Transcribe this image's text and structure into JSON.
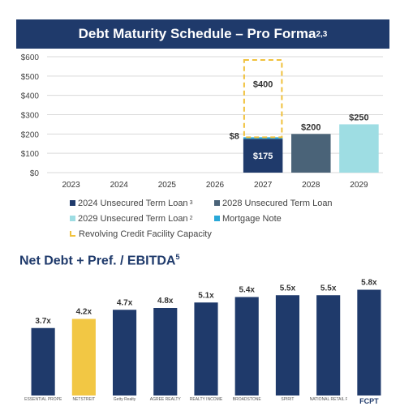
{
  "chart_data": [
    {
      "type": "bar",
      "stacked": true,
      "title": "Debt Maturity Schedule – Pro Forma",
      "title_superscript": "2,3",
      "categories": [
        "2023",
        "2024",
        "2025",
        "2026",
        "2027",
        "2028",
        "2029"
      ],
      "yticks": [
        "$0",
        "$100",
        "$200",
        "$300",
        "$400",
        "$500",
        "$600"
      ],
      "ylim": [
        0,
        600
      ],
      "grid": true,
      "series": [
        {
          "name": "2024 Unsecured Term Loan",
          "name_superscript": "3",
          "color": "#1f3a6b",
          "values": [
            0,
            0,
            0,
            0,
            175,
            0,
            0
          ]
        },
        {
          "name": "2028 Unsecured Term Loan",
          "name_superscript": "",
          "color": "#4a6378",
          "values": [
            0,
            0,
            0,
            0,
            0,
            200,
            0
          ]
        },
        {
          "name": "2029 Unsecured Term Loan",
          "name_superscript": "2",
          "color": "#9edde3",
          "values": [
            0,
            0,
            0,
            0,
            0,
            0,
            250
          ]
        },
        {
          "name": "Mortgage Note",
          "name_superscript": "",
          "color": "#2aa8d8",
          "values": [
            0,
            0,
            0,
            0,
            8,
            0,
            0
          ]
        },
        {
          "name": "Revolving Credit Facility Capacity",
          "name_superscript": "",
          "color": "#f0c13c",
          "dashed": true,
          "values": [
            0,
            0,
            0,
            0,
            400,
            0,
            0
          ]
        }
      ],
      "data_labels": [
        {
          "category": "2027",
          "series": "2024 Unsecured Term Loan",
          "text": "$175"
        },
        {
          "category": "2027",
          "series": "Mortgage Note",
          "text": "$8"
        },
        {
          "category": "2027",
          "series": "Revolving Credit Facility Capacity",
          "text": "$400"
        },
        {
          "category": "2028",
          "series": "2028 Unsecured Term Loan",
          "text": "$200"
        },
        {
          "category": "2029",
          "series": "2029 Unsecured Term Loan",
          "text": "$250"
        }
      ]
    },
    {
      "type": "bar",
      "title": "Net Debt + Pref. / EBITDA",
      "title_superscript": "5",
      "categories": [
        "Essential Properties",
        "NETSTREIT",
        "Getty Realty",
        "Agree Realty",
        "Realty Income",
        "Broadstone",
        "Spirit",
        "National Retail Properties",
        "FCPT"
      ],
      "values": [
        3.7,
        4.2,
        4.7,
        4.8,
        5.1,
        5.4,
        5.5,
        5.5,
        5.8
      ],
      "value_labels": [
        "3.7x",
        "4.2x",
        "4.7x",
        "4.8x",
        "5.1x",
        "5.4x",
        "5.5x",
        "5.5x",
        "5.8x"
      ],
      "colors": [
        "#1f3a6b",
        "#f2c744",
        "#1f3a6b",
        "#1f3a6b",
        "#1f3a6b",
        "#1f3a6b",
        "#1f3a6b",
        "#1f3a6b",
        "#1f3a6b"
      ],
      "logo_labels": [
        "ESSENTIAL PROPERTIES",
        "NETSTREIT",
        "Getty Realty",
        "AGREE REALTY",
        "REALTY INCOME",
        "BROADSTONE",
        "SPIRIT",
        "NATIONAL RETAIL PROPERTIES",
        "FCPT"
      ],
      "ylim": [
        0,
        6.4
      ]
    }
  ]
}
